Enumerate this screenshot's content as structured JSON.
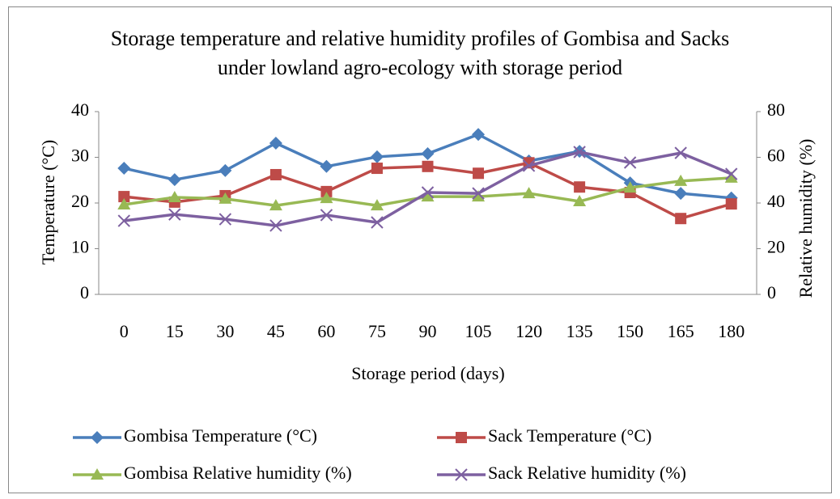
{
  "chart_data": {
    "type": "line",
    "title": "Storage temperature and relative humidity profiles of Gombisa and Sacks under lowland agro-ecology with storage period",
    "xlabel": "Storage period (days)",
    "ylabel": "Temperature (°C)",
    "y2label": "Relative humidity (%)",
    "categories": [
      "0",
      "15",
      "30",
      "45",
      "60",
      "75",
      "90",
      "105",
      "120",
      "135",
      "150",
      "165",
      "180"
    ],
    "ylim": [
      0,
      40
    ],
    "yticks": [
      0,
      10,
      20,
      30,
      40
    ],
    "y2lim": [
      0,
      80
    ],
    "y2ticks": [
      0,
      20,
      40,
      60,
      80
    ],
    "grid": false,
    "legend": "bottom",
    "series": [
      {
        "name": "Gombisa Temperature (°C)",
        "color": "#4a7ebb",
        "marker": "diamond",
        "values": [
          27.6,
          25.1,
          27.1,
          33.1,
          28.0,
          30.1,
          30.8,
          35.0,
          29.2,
          31.3,
          24.4,
          22.1,
          21.1
        ]
      },
      {
        "name": "Sack Temperature (°C)",
        "color": "#be4b48",
        "marker": "square",
        "values": [
          21.4,
          20.2,
          21.6,
          26.2,
          22.5,
          27.6,
          28.0,
          26.5,
          28.8,
          23.5,
          22.3,
          16.6,
          19.8
        ]
      },
      {
        "name": "Gombisa Relative humidity (%)",
        "color": "#98b954",
        "marker": "triangle",
        "axis": "y2",
        "values": [
          39.3,
          42.5,
          41.8,
          38.9,
          42.1,
          38.9,
          42.8,
          42.8,
          44.2,
          40.7,
          46.7,
          49.6,
          51.0
        ]
      },
      {
        "name": "Sack Relative humidity (%)",
        "color": "#7d60a0",
        "marker": "x",
        "axis": "y2",
        "values": [
          32.2,
          35.0,
          32.9,
          30.1,
          34.7,
          31.5,
          44.6,
          44.2,
          56.3,
          62.3,
          57.7,
          61.9,
          52.7
        ]
      }
    ]
  }
}
